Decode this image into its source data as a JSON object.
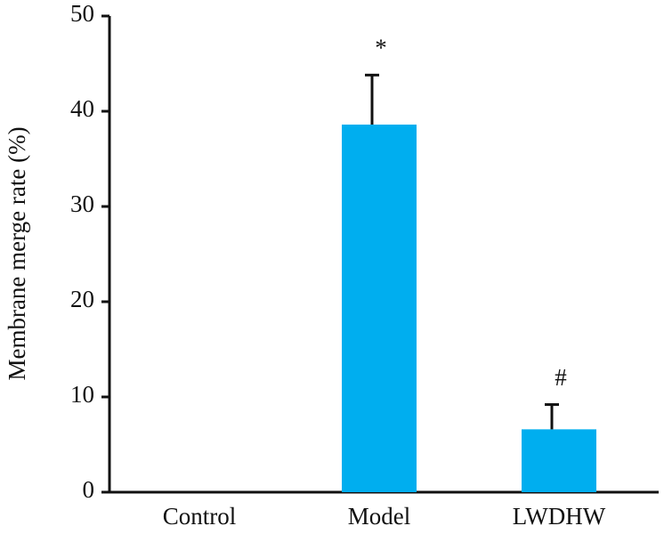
{
  "chart_data": {
    "type": "bar",
    "y_label": "Membrane merge rate (%)",
    "categories": [
      "Control",
      "Model",
      "LWDHW"
    ],
    "values": [
      0,
      38.6,
      6.6
    ],
    "errors": [
      0,
      5.2,
      2.6
    ],
    "significance": [
      null,
      "*",
      "#"
    ],
    "color": "#00aeef",
    "ylim": [
      0,
      50
    ],
    "yticks": [
      0,
      10,
      20,
      30,
      40,
      50
    ],
    "grid": false
  }
}
